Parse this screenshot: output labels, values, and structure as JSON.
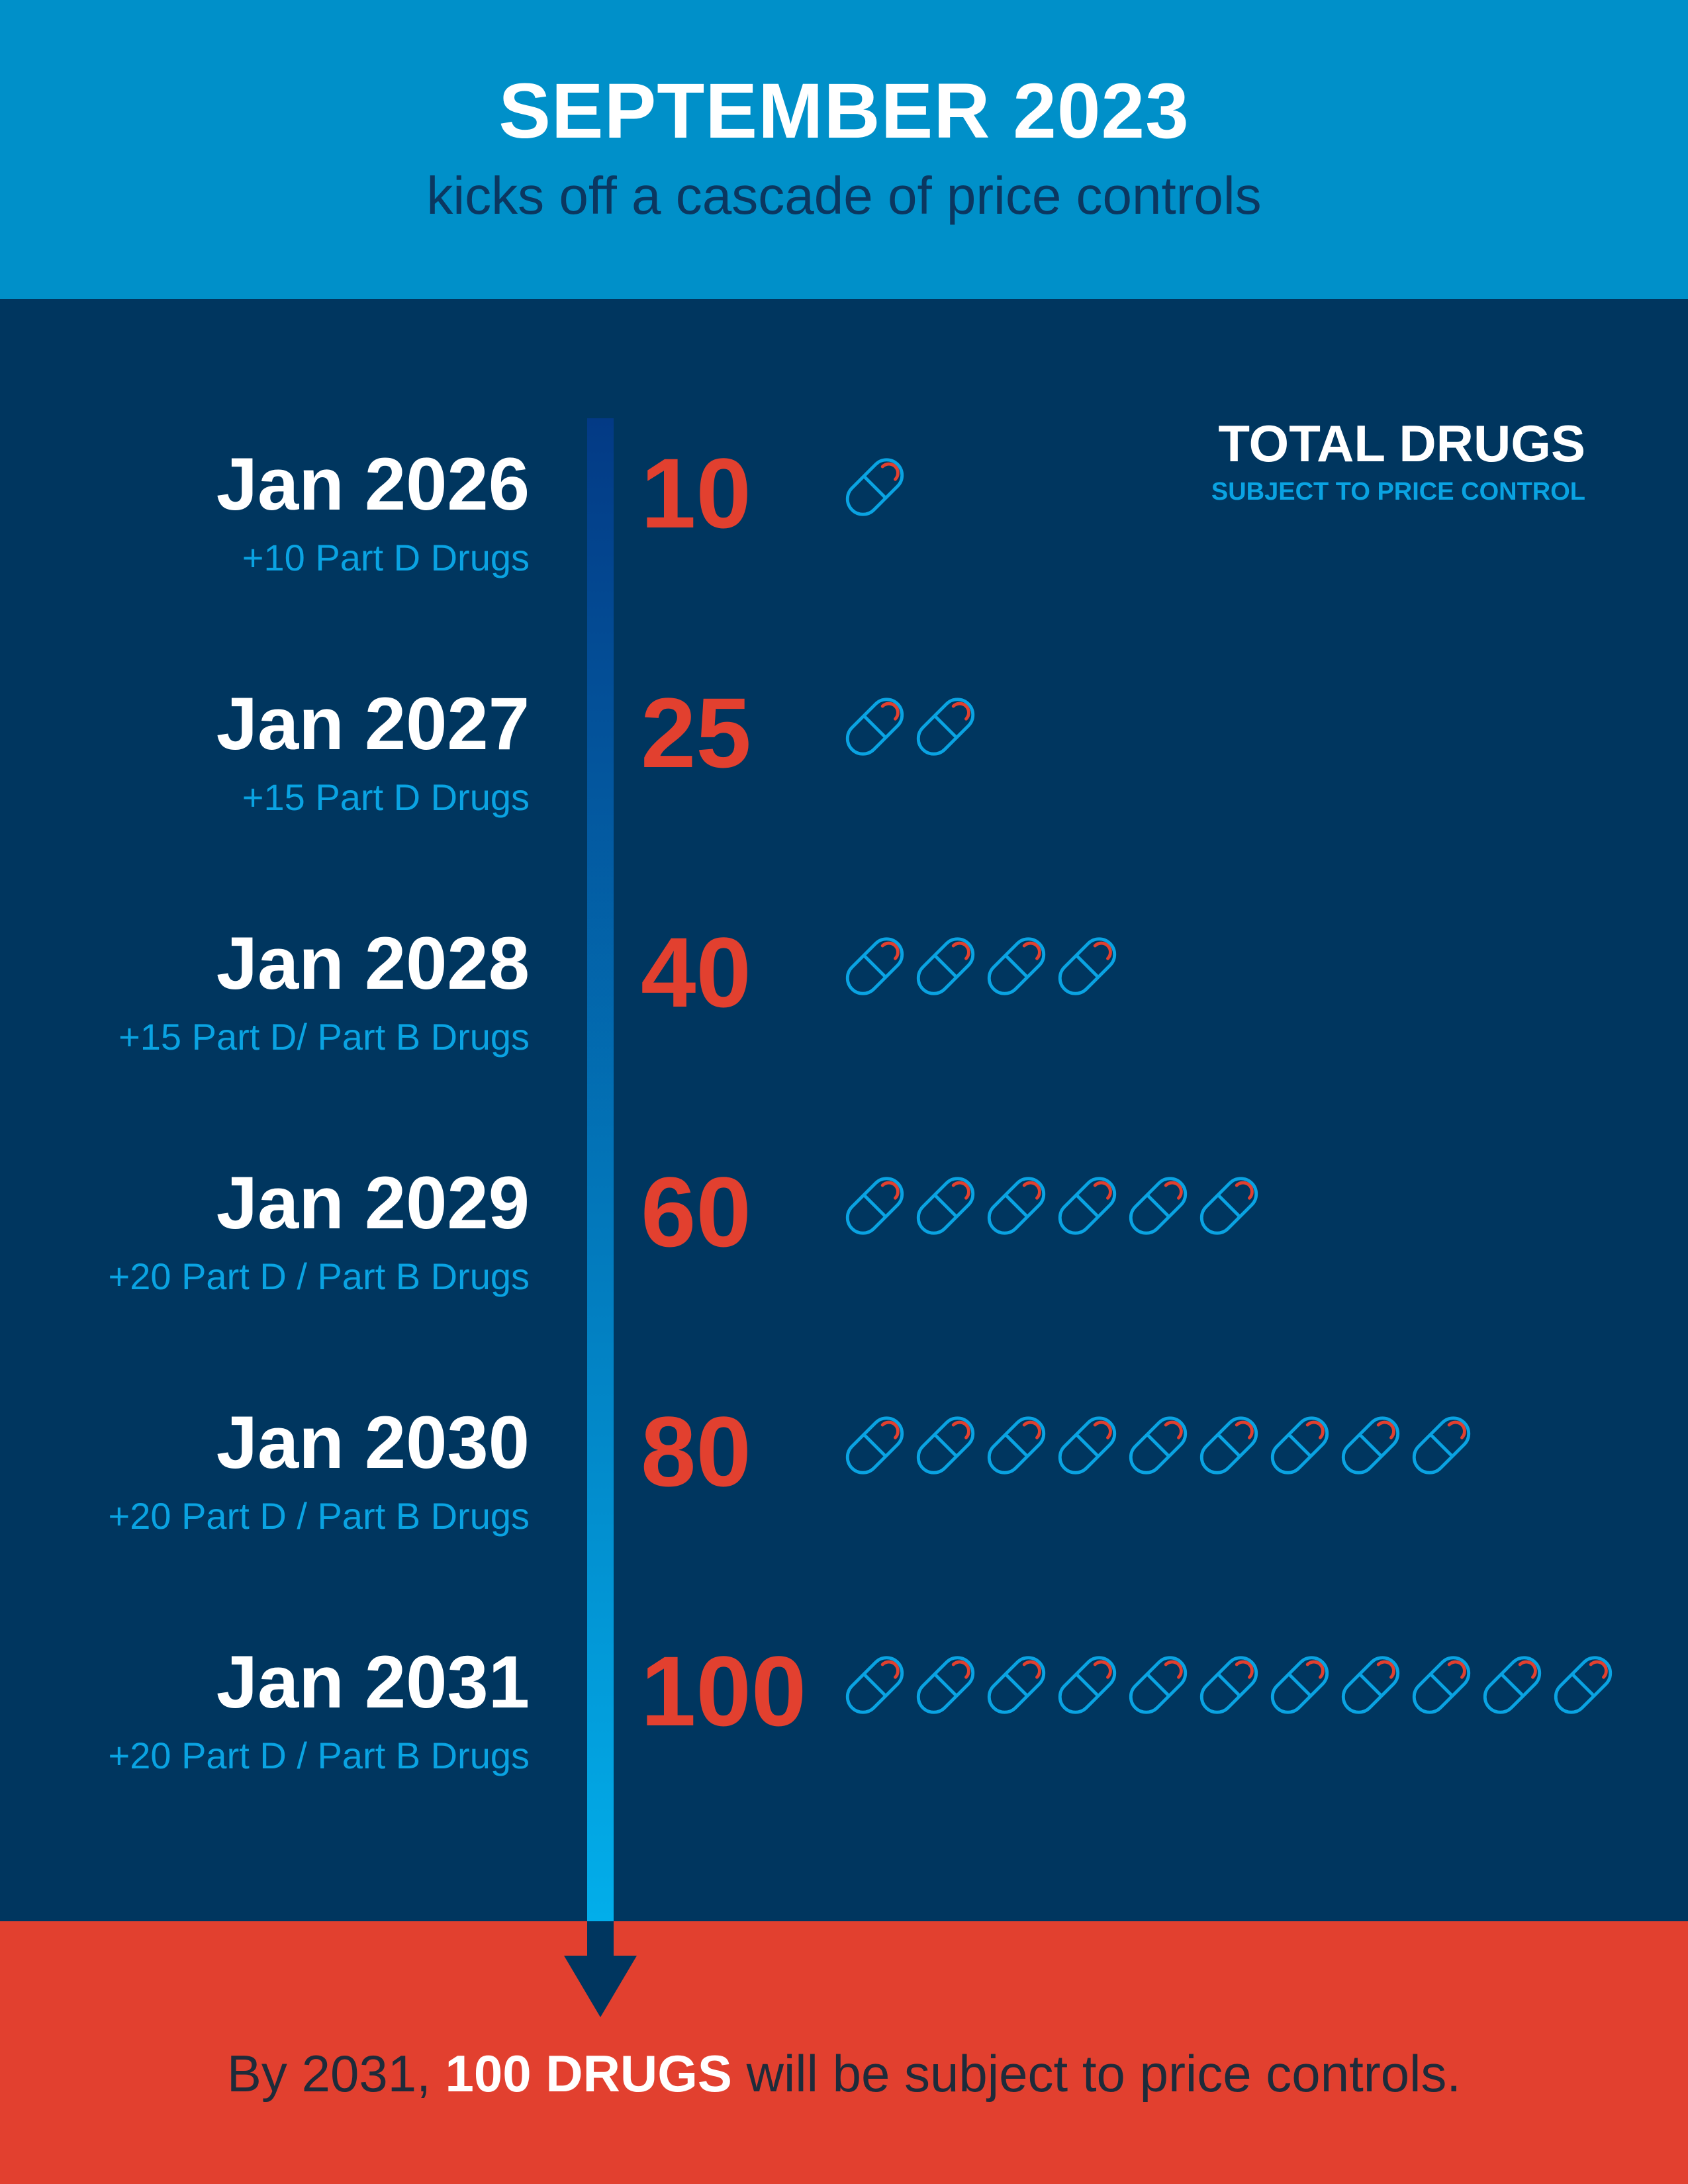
{
  "header": {
    "title": "SEPTEMBER 2023",
    "subtitle": "kicks off a cascade of price controls"
  },
  "legend": {
    "title": "TOTAL DRUGS",
    "subtitle": "SUBJECT TO PRICE CONTROL"
  },
  "timeline": [
    {
      "date": "Jan 2026",
      "note": "+10 Part D Drugs",
      "total": "10",
      "pills": 1
    },
    {
      "date": "Jan 2027",
      "note": "+15 Part D Drugs",
      "total": "25",
      "pills": 2
    },
    {
      "date": "Jan 2028",
      "note": "+15 Part D/ Part B Drugs",
      "total": "40",
      "pills": 4
    },
    {
      "date": "Jan 2029",
      "note": "+20 Part D / Part B Drugs",
      "total": "60",
      "pills": 6
    },
    {
      "date": "Jan 2030",
      "note": "+20 Part D / Part B Drugs",
      "total": "80",
      "pills": 9
    },
    {
      "date": "Jan 2031",
      "note": "+20 Part D / Part B Drugs",
      "total": "100",
      "pills": 11
    }
  ],
  "footer": {
    "pre": "By 2031, ",
    "bold": "100 DRUGS",
    "post": " will be subject to price controls."
  },
  "colors": {
    "header": "#0090c9",
    "background": "#00365f",
    "accent": "#e2402f",
    "pill": "#0aa3e2"
  }
}
